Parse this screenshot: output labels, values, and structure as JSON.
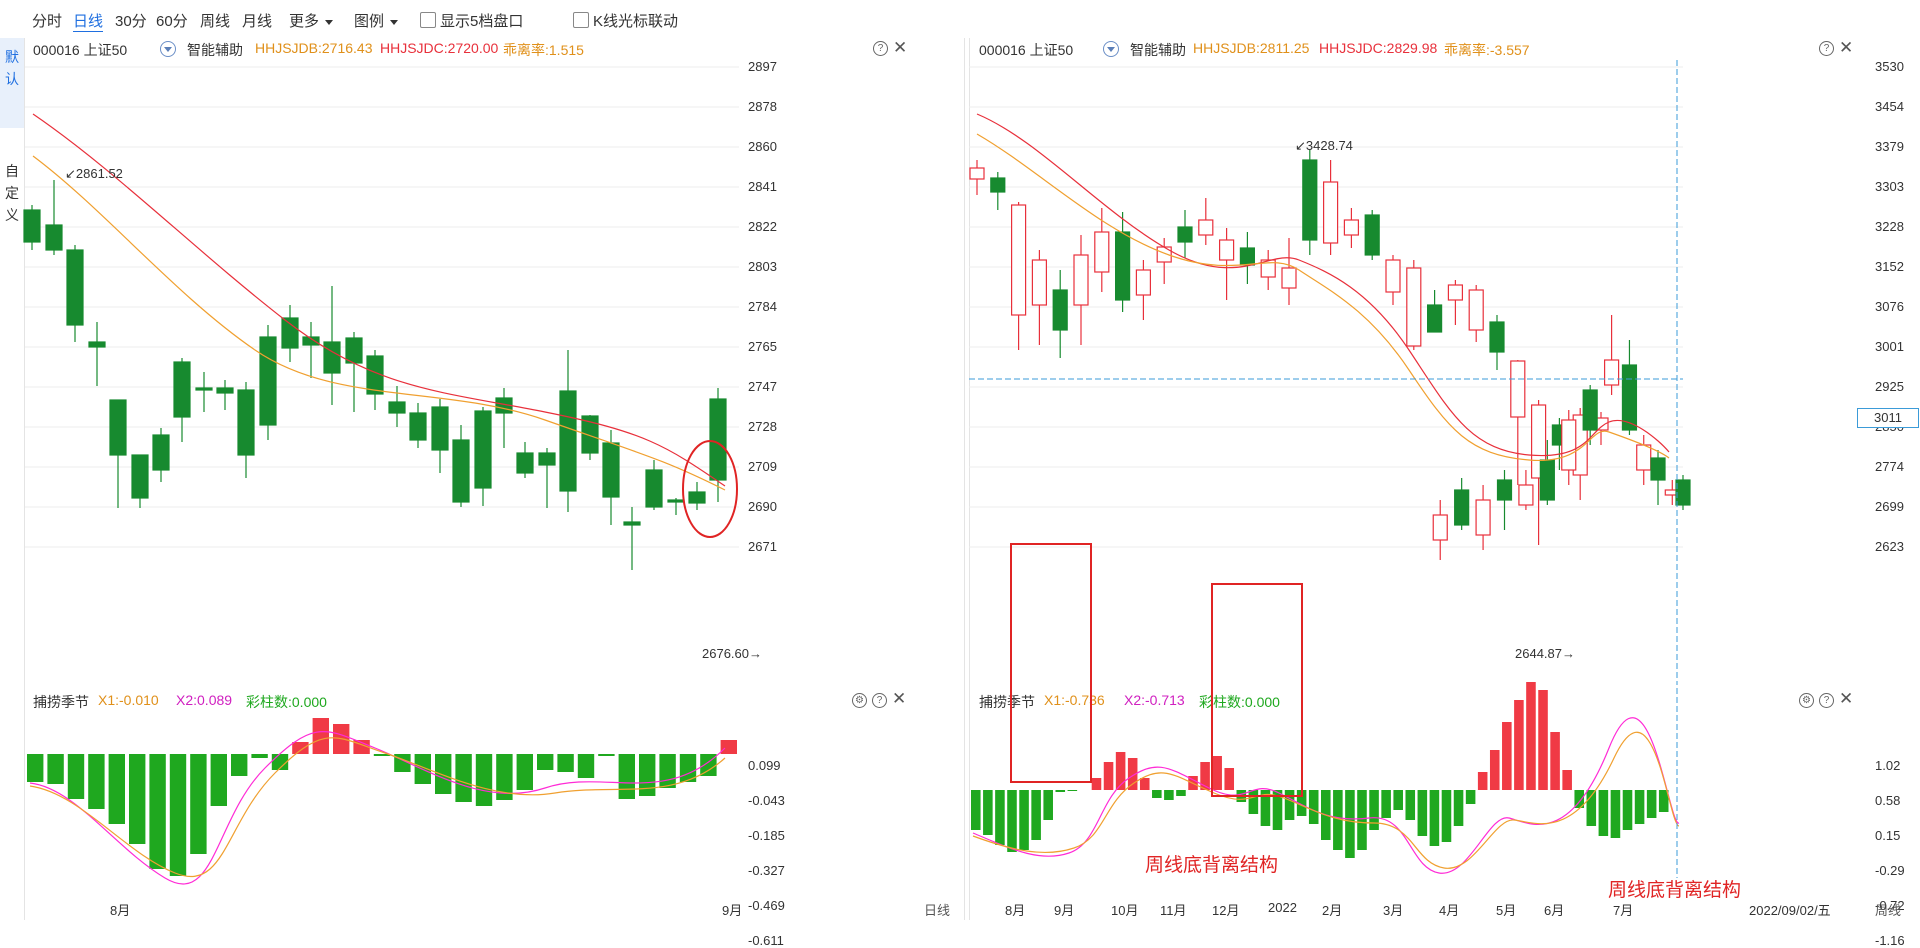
{
  "toolbar": {
    "periods": [
      "分时",
      "日线",
      "30分",
      "60分",
      "周线",
      "月线"
    ],
    "active_period": "日线",
    "more_label": "更多",
    "legend_label": "图例",
    "show_5_label": "显示5档盘口",
    "kline_link_label": "K线光标联动"
  },
  "sidebar": {
    "tab_default": "默认",
    "tab_custom": "自定义"
  },
  "left_panel": {
    "code": "000016 上证50",
    "assist": "智能辅助",
    "hhjsjdb": "HHJSJDB:2716.43",
    "hhjsjdc": "HHJSJDC:2720.00",
    "divergence": "乖离率:1.515",
    "y_labels": [
      "2897",
      "2878",
      "2860",
      "2841",
      "2822",
      "2803",
      "2784",
      "2765",
      "2747",
      "2728",
      "2709",
      "2690",
      "2671"
    ],
    "high_label": "2861.52",
    "low_label": "2676.60",
    "indicator_name": "捕捞季节",
    "x1": "X1:-0.010",
    "x2": "X2:0.089",
    "bars": "彩柱数:0.000",
    "ind_y_labels": [
      "0.099",
      "-0.043",
      "-0.185",
      "-0.327",
      "-0.469",
      "-0.611"
    ],
    "x_labels": [
      "8月",
      "9月"
    ],
    "period_label": "日线"
  },
  "right_panel": {
    "code": "000016 上证50",
    "assist": "智能辅助",
    "hhjsjdb": "HHJSJDB:2811.25",
    "hhjsjdc": "HHJSJDC:2829.98",
    "divergence": "乖离率:-3.557",
    "y_labels": [
      "3530",
      "3454",
      "3379",
      "3303",
      "3228",
      "3152",
      "3076",
      "3001",
      "2925",
      "2850",
      "2774",
      "2699",
      "2623"
    ],
    "cursor_price": "3011",
    "high_label": "3428.74",
    "low_label": "2644.87",
    "indicator_name": "捕捞季节",
    "x1": "X1:-0.736",
    "x2": "X2:-0.713",
    "bars": "彩柱数:0.000",
    "ind_y_labels": [
      "1.02",
      "0.58",
      "0.15",
      "-0.29",
      "-0.72",
      "-1.16"
    ],
    "x_labels": [
      "8月",
      "9月",
      "10月",
      "11月",
      "12月",
      "2022",
      "2月",
      "3月",
      "4月",
      "5月",
      "6月",
      "7月"
    ],
    "cursor_date": "2022/09/02/五",
    "period_label": "周线",
    "annotation_1": "周线底背离结构",
    "annotation_2": "周线底背离结构"
  },
  "colors": {
    "up": "#e8303b",
    "down": "#178a2f",
    "ma_short": "#f0a030",
    "ma_long": "#e8303b",
    "dif": "#ff2bd6",
    "dea": "#f0a030",
    "hist_pos": "#f03a45",
    "hist_neg": "#1fa81f",
    "annotation": "#e02424",
    "cursor": "#3b9bd8",
    "active_tab": "#1f6fe0"
  }
}
